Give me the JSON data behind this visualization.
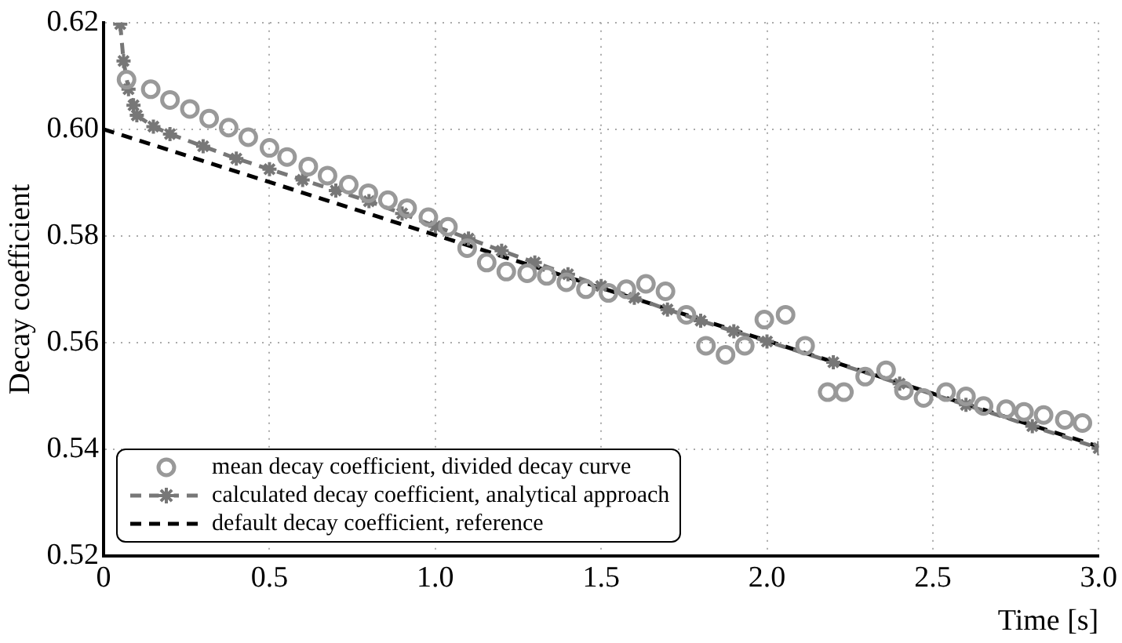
{
  "chart_data": {
    "type": "line",
    "xlabel": "Time [s]",
    "ylabel": "Decay coefficient",
    "xlim": [
      0,
      3.0
    ],
    "xticks": [
      0,
      0.5,
      {
        "value": 1,
        "label": "1.0"
      },
      1.5,
      {
        "value": 2,
        "label": "2.0"
      },
      2.5,
      {
        "value": 3,
        "label": "3.0"
      }
    ],
    "ylim": [
      0.52,
      0.62
    ],
    "yticks": [
      0.52,
      0.54,
      0.56,
      0.58,
      {
        "value": 0.6,
        "label": "0.60"
      },
      0.62
    ],
    "grid": true,
    "legend": "bottom left",
    "series": [
      {
        "name": "mean decay coefficient, divided decay curve",
        "type": "scatter",
        "marker": "circle",
        "color": "#999999",
        "x": [
          0.069,
          0.142,
          0.2,
          0.26,
          0.318,
          0.377,
          0.436,
          0.5,
          0.553,
          0.617,
          0.675,
          0.739,
          0.798,
          0.857,
          0.915,
          0.979,
          1.038,
          1.096,
          1.155,
          1.214,
          1.277,
          1.336,
          1.395,
          1.454,
          1.522,
          1.576,
          1.635,
          1.694,
          1.757,
          1.816,
          1.875,
          1.933,
          1.992,
          2.056,
          2.115,
          2.183,
          2.232,
          2.296,
          2.359,
          2.413,
          2.472,
          2.54,
          2.6,
          2.653,
          2.721,
          2.775,
          2.834,
          2.898,
          2.951
        ],
        "values": [
          0.6093,
          0.6075,
          0.6055,
          0.6038,
          0.602,
          0.6003,
          0.5985,
          0.5965,
          0.5948,
          0.593,
          0.5913,
          0.5896,
          0.588,
          0.5867,
          0.5852,
          0.5835,
          0.5817,
          0.5777,
          0.575,
          0.5733,
          0.573,
          0.5725,
          0.5713,
          0.57,
          0.5693,
          0.57,
          0.571,
          0.5696,
          0.5652,
          0.5594,
          0.5577,
          0.5594,
          0.5643,
          0.5652,
          0.5594,
          0.5507,
          0.5507,
          0.5536,
          0.5548,
          0.551,
          0.5496,
          0.5507,
          0.5499,
          0.5481,
          0.5475,
          0.547,
          0.5464,
          0.5455,
          0.5449
        ]
      },
      {
        "name": "calculated decay coefficient, analytical approach",
        "type": "line",
        "marker": "cross",
        "line_style": "dashed",
        "color": "#777777",
        "x": [
          0.05,
          0.06,
          0.075,
          0.09,
          0.1,
          0.15,
          0.2,
          0.3,
          0.4,
          0.5,
          0.6,
          0.7,
          0.8,
          0.9,
          1.0,
          1.1,
          1.2,
          1.3,
          1.4,
          1.5,
          1.6,
          1.7,
          1.8,
          1.9,
          2.0,
          2.2,
          2.4,
          2.6,
          2.8,
          3.0
        ],
        "values": [
          0.6197,
          0.6128,
          0.6075,
          0.6045,
          0.6026,
          0.6005,
          0.5991,
          0.5968,
          0.5945,
          0.5925,
          0.5905,
          0.5885,
          0.5865,
          0.5842,
          0.5818,
          0.5795,
          0.5772,
          0.575,
          0.5728,
          0.5706,
          0.5684,
          0.5662,
          0.5641,
          0.5621,
          0.5602,
          0.5563,
          0.5523,
          0.5483,
          0.5443,
          0.5402
        ]
      },
      {
        "name": "default decay coefficient, reference",
        "type": "line",
        "marker": "none",
        "line_style": "dashed",
        "color": "#000000",
        "x": [
          0,
          3.0
        ],
        "values": [
          0.6,
          0.5405
        ]
      }
    ]
  }
}
